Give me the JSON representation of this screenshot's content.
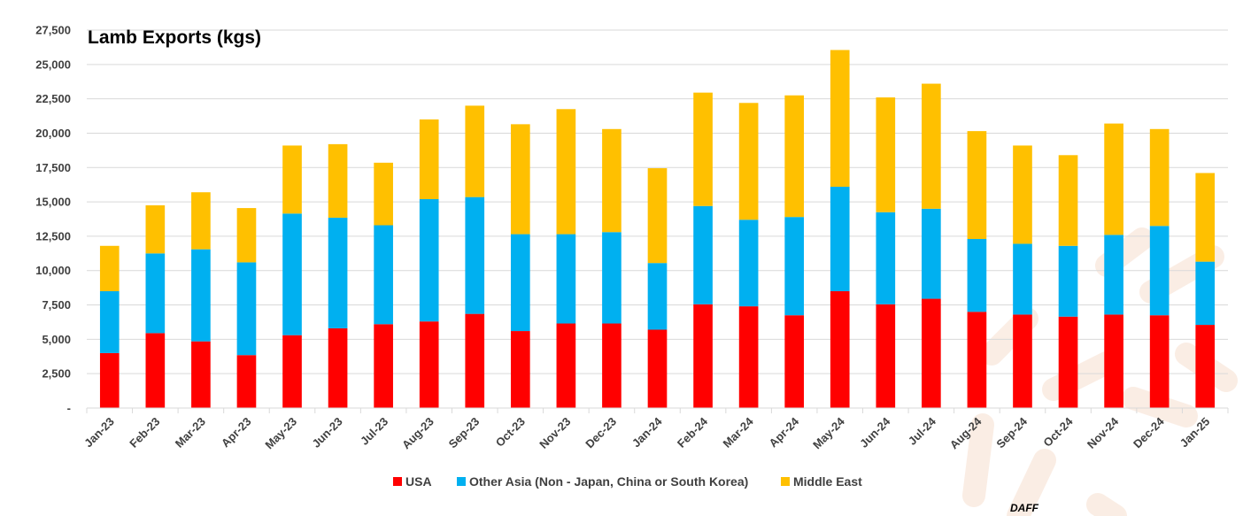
{
  "chart_data": {
    "type": "bar",
    "stacked": true,
    "title": "Lamb Exports (kgs)",
    "xlabel": "",
    "ylabel": "",
    "ylim": [
      0,
      27500
    ],
    "yticks": [
      "-",
      "2,500",
      "5,000",
      "7,500",
      "10,000",
      "12,500",
      "15,000",
      "17,500",
      "20,000",
      "22,500",
      "25,000",
      "27,500"
    ],
    "grid": true,
    "legend_position": "bottom",
    "categories": [
      "Jan-23",
      "Feb-23",
      "Mar-23",
      "Apr-23",
      "May-23",
      "Jun-23",
      "Jul-23",
      "Aug-23",
      "Sep-23",
      "Oct-23",
      "Nov-23",
      "Dec-23",
      "Jan-24",
      "Feb-24",
      "Mar-24",
      "Apr-24",
      "May-24",
      "Jun-24",
      "Jul-24",
      "Aug-24",
      "Sep-24",
      "Oct-24",
      "Nov-24",
      "Dec-24",
      "Jan-25"
    ],
    "series": [
      {
        "name": "USA",
        "color": "#ff0000",
        "values": [
          4000,
          5450,
          4850,
          3850,
          5300,
          5800,
          6100,
          6300,
          6850,
          5600,
          6150,
          6150,
          5700,
          7550,
          7400,
          6750,
          8500,
          7550,
          7950,
          7000,
          6800,
          6650,
          6800,
          6750,
          6050
        ]
      },
      {
        "name": "Other Asia (Non - Japan, China or South Korea)",
        "color": "#00b0f0",
        "values": [
          4500,
          5800,
          6700,
          6750,
          8850,
          8050,
          7200,
          8900,
          8500,
          7050,
          6500,
          6650,
          4850,
          7150,
          6300,
          7150,
          7600,
          6700,
          6550,
          5300,
          5150,
          5150,
          5800,
          6500,
          4600
        ]
      },
      {
        "name": "Middle East",
        "color": "#ffc000",
        "values": [
          3300,
          3500,
          4150,
          3950,
          4950,
          5350,
          4550,
          5800,
          6650,
          8000,
          9100,
          7500,
          6900,
          8250,
          8500,
          8850,
          9950,
          8350,
          9100,
          7850,
          7150,
          6600,
          8100,
          7050,
          6450
        ]
      }
    ],
    "source": "DAFF"
  }
}
